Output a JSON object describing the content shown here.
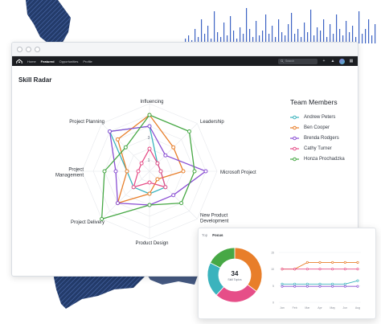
{
  "colors": {
    "navy": "#233b6a",
    "nav_bg": "#1b1d21",
    "andrew": "#3bb3bd",
    "ben": "#e87e2a",
    "brenda": "#8a4fd3",
    "cathy": "#e64e88",
    "honza": "#47a845"
  },
  "nav": {
    "logo_icon": "company-logo-icon",
    "items": [
      "Home",
      "Featured",
      "Opportunities",
      "Profile"
    ],
    "active_index": 1,
    "search_placeholder": "Search",
    "icons": [
      "plus-icon",
      "bell-icon",
      "avatar",
      "grid-icon"
    ]
  },
  "panel": {
    "title": "Skill Radar"
  },
  "chart_data": [
    {
      "type": "radar",
      "title": "Skill Radar",
      "axes": [
        "Influencing",
        "Leadership",
        "Microsoft Project",
        "New Product Development",
        "Product Design",
        "Project Delivery",
        "Project Management",
        "Project Planning"
      ],
      "axis_labels": [
        "Influencing",
        "Leadership",
        "Microsoft Project",
        "New Product\nDevelopment",
        "Product Design",
        "Project Delivery",
        "Project\nManagement",
        "Project Planning"
      ],
      "scale_ticks": [
        "1",
        "2",
        "3",
        "4",
        "5"
      ],
      "range": [
        0,
        6
      ],
      "legend_title": "Team Members",
      "legend_position": "right",
      "series": [
        {
          "name": "Andrew Peters",
          "color": "#3bb3bd",
          "values": [
            4,
            1,
            1,
            2,
            2,
            2,
            2,
            5
          ]
        },
        {
          "name": "Ben Cooper",
          "color": "#e87e2a",
          "values": [
            5,
            3,
            3,
            1,
            2,
            4,
            2,
            4
          ]
        },
        {
          "name": "Brenda Rodgers",
          "color": "#8a4fd3",
          "values": [
            4,
            2,
            5,
            3,
            3,
            4,
            3,
            5
          ]
        },
        {
          "name": "Cathy Turner",
          "color": "#e64e88",
          "values": [
            2,
            1,
            1,
            2,
            1,
            2,
            1,
            1
          ]
        },
        {
          "name": "Honza Prochadzka",
          "color": "#47a845",
          "values": [
            5,
            5,
            4,
            4,
            3,
            6,
            4,
            3
          ]
        }
      ]
    },
    {
      "type": "pie",
      "center_value": "34",
      "center_label": "Skill Topics",
      "slices": [
        {
          "color": "#e87e2a",
          "value": 12
        },
        {
          "color": "#e64e88",
          "value": 9
        },
        {
          "color": "#3bb3bd",
          "value": 7
        },
        {
          "color": "#47a845",
          "value": 6
        }
      ]
    },
    {
      "type": "line",
      "x": [
        "Jan",
        "Feb",
        "Mar",
        "Apr",
        "May",
        "Jun",
        "Aug"
      ],
      "ylim": [
        0,
        15
      ],
      "y_ticks": [
        "15",
        "10",
        "5",
        "0"
      ],
      "series": [
        {
          "color": "#e87e2a",
          "values": [
            10,
            10,
            12,
            12,
            12,
            12,
            12
          ]
        },
        {
          "color": "#e64e88",
          "values": [
            10,
            10,
            10,
            10,
            10,
            10,
            10
          ]
        },
        {
          "color": "#3bb3bd",
          "values": [
            5.5,
            5.5,
            5.5,
            5.5,
            5.5,
            5.5,
            6.5
          ]
        },
        {
          "color": "#8a4fd3",
          "values": [
            4.8,
            4.8,
            4.8,
            4.8,
            4.8,
            4.8,
            4.8
          ]
        }
      ]
    }
  ],
  "card": {
    "tabs": [
      "Top",
      "Focus"
    ],
    "active_tab_index": 1
  }
}
